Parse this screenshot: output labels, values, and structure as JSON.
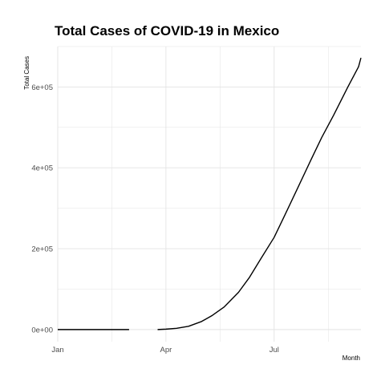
{
  "chart_data": {
    "type": "line",
    "title": "Total Cases of COVID-19 in Mexico",
    "xlabel": "Month",
    "ylabel": "Total Cases",
    "x_axis_type": "date",
    "xlim": [
      "2020-01-01",
      "2020-09-12"
    ],
    "ylim": [
      -30000,
      700000
    ],
    "x_ticks": [
      {
        "date": "2020-01-01",
        "label": "Jan"
      },
      {
        "date": "2020-04-01",
        "label": "Apr"
      },
      {
        "date": "2020-07-01",
        "label": "Jul"
      }
    ],
    "y_ticks": [
      {
        "value": 0,
        "label": "0e+00"
      },
      {
        "value": 200000,
        "label": "2e+05"
      },
      {
        "value": 400000,
        "label": "4e+05"
      },
      {
        "value": 600000,
        "label": "6e+05"
      }
    ],
    "grid": true,
    "legend": "none",
    "line_color": "#000000",
    "series": [
      {
        "segments": [
          [
            {
              "x": "2020-01-01",
              "y": 0
            },
            {
              "x": "2020-02-20",
              "y": 0
            },
            {
              "x": "2020-03-01",
              "y": 0
            }
          ],
          [
            {
              "x": "2020-03-25",
              "y": 0
            },
            {
              "x": "2020-04-01",
              "y": 1000
            },
            {
              "x": "2020-04-10",
              "y": 3000
            },
            {
              "x": "2020-04-20",
              "y": 8000
            },
            {
              "x": "2020-05-01",
              "y": 20000
            },
            {
              "x": "2020-05-10",
              "y": 35000
            },
            {
              "x": "2020-05-20",
              "y": 56000
            },
            {
              "x": "2020-06-01",
              "y": 92000
            },
            {
              "x": "2020-06-10",
              "y": 128000
            },
            {
              "x": "2020-06-20",
              "y": 176000
            },
            {
              "x": "2020-07-01",
              "y": 228000
            },
            {
              "x": "2020-07-10",
              "y": 283000
            },
            {
              "x": "2020-07-20",
              "y": 345000
            },
            {
              "x": "2020-08-01",
              "y": 420000
            },
            {
              "x": "2020-08-10",
              "y": 475000
            },
            {
              "x": "2020-08-20",
              "y": 530000
            },
            {
              "x": "2020-09-01",
              "y": 600000
            },
            {
              "x": "2020-09-10",
              "y": 650000
            },
            {
              "x": "2020-09-12",
              "y": 672000
            }
          ]
        ]
      }
    ]
  }
}
